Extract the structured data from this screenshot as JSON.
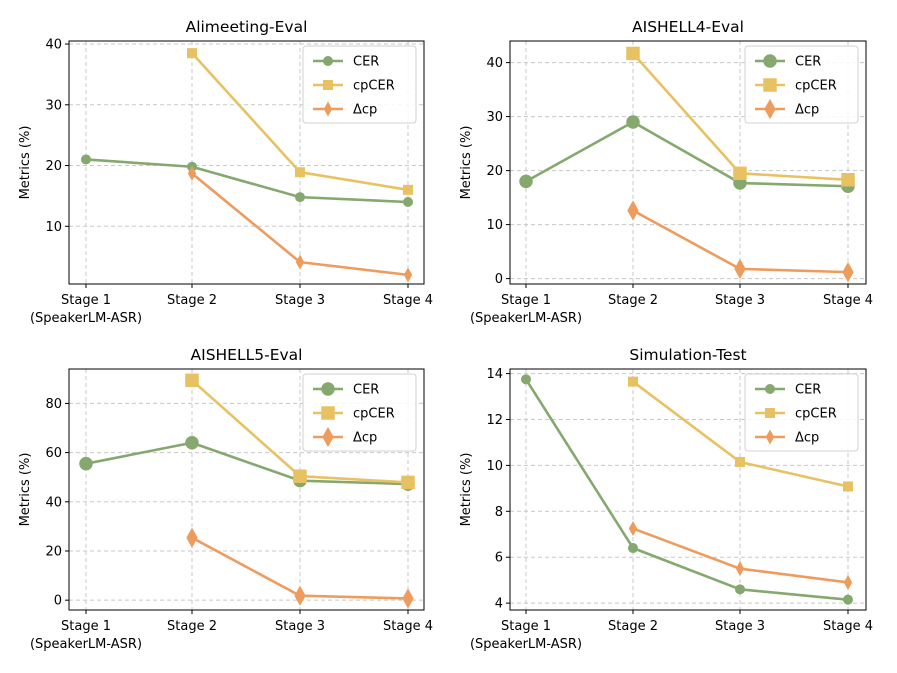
{
  "chart_data": [
    {
      "type": "line",
      "title": "Alimeeting-Eval",
      "ylabel": "Metrics (%)",
      "xlabel": "",
      "categories": [
        "Stage 1\n(SpeakerLM-ASR)",
        "Stage 2",
        "Stage 3",
        "Stage 4"
      ],
      "ylim": [
        0.5,
        40.5
      ],
      "yticks": [
        10,
        20,
        30,
        40
      ],
      "grid": true,
      "legend": "top-right",
      "series": [
        {
          "name": "CER",
          "values": [
            21.0,
            19.8,
            14.8,
            14.0
          ],
          "color": "#85a86f",
          "marker": "circle"
        },
        {
          "name": "cpCER",
          "values": [
            null,
            38.5,
            18.9,
            16.0
          ],
          "color": "#e8c262",
          "marker": "square"
        },
        {
          "name": "Δcp",
          "values": [
            null,
            18.7,
            4.1,
            2.0
          ],
          "color": "#ed9c5e",
          "marker": "diamond"
        }
      ]
    },
    {
      "type": "line",
      "title": "AISHELL4-Eval",
      "ylabel": "Metrics (%)",
      "xlabel": "",
      "categories": [
        "Stage 1\n(SpeakerLM-ASR)",
        "Stage 2",
        "Stage 3",
        "Stage 4"
      ],
      "ylim": [
        -1.0,
        44.0
      ],
      "yticks": [
        0,
        10,
        20,
        30,
        40
      ],
      "grid": true,
      "legend": "top-right",
      "series": [
        {
          "name": "CER",
          "values": [
            18.0,
            29.0,
            17.7,
            17.1
          ],
          "color": "#85a86f",
          "marker": "circle"
        },
        {
          "name": "cpCER",
          "values": [
            null,
            41.7,
            19.5,
            18.3
          ],
          "color": "#e8c262",
          "marker": "square"
        },
        {
          "name": "Δcp",
          "values": [
            null,
            12.6,
            1.8,
            1.2
          ],
          "color": "#ed9c5e",
          "marker": "diamond"
        }
      ]
    },
    {
      "type": "line",
      "title": "AISHELL5-Eval",
      "ylabel": "Metrics (%)",
      "xlabel": "",
      "categories": [
        "Stage 1\n(SpeakerLM-ASR)",
        "Stage 2",
        "Stage 3",
        "Stage 4"
      ],
      "ylim": [
        -4.0,
        94.0
      ],
      "yticks": [
        0,
        20,
        40,
        60,
        80
      ],
      "grid": true,
      "legend": "top-right",
      "series": [
        {
          "name": "CER",
          "values": [
            55.5,
            64.0,
            48.6,
            47.2
          ],
          "color": "#85a86f",
          "marker": "circle"
        },
        {
          "name": "cpCER",
          "values": [
            null,
            89.4,
            50.4,
            47.9
          ],
          "color": "#e8c262",
          "marker": "square"
        },
        {
          "name": "Δcp",
          "values": [
            null,
            25.4,
            1.8,
            0.7
          ],
          "color": "#ed9c5e",
          "marker": "diamond"
        }
      ]
    },
    {
      "type": "line",
      "title": "Simulation-Test",
      "ylabel": "Metrics (%)",
      "xlabel": "",
      "categories": [
        "Stage 1\n(SpeakerLM-ASR)",
        "Stage 2",
        "Stage 3",
        "Stage 4"
      ],
      "ylim": [
        3.7,
        14.2
      ],
      "yticks": [
        4,
        6,
        8,
        10,
        12,
        14
      ],
      "grid": true,
      "legend": "top-right",
      "series": [
        {
          "name": "CER",
          "values": [
            13.75,
            6.4,
            4.6,
            4.15
          ],
          "color": "#85a86f",
          "marker": "circle"
        },
        {
          "name": "cpCER",
          "values": [
            null,
            13.65,
            10.15,
            9.08
          ],
          "color": "#e8c262",
          "marker": "square"
        },
        {
          "name": "Δcp",
          "values": [
            null,
            7.25,
            5.5,
            4.9
          ],
          "color": "#ed9c5e",
          "marker": "diamond"
        }
      ]
    }
  ]
}
